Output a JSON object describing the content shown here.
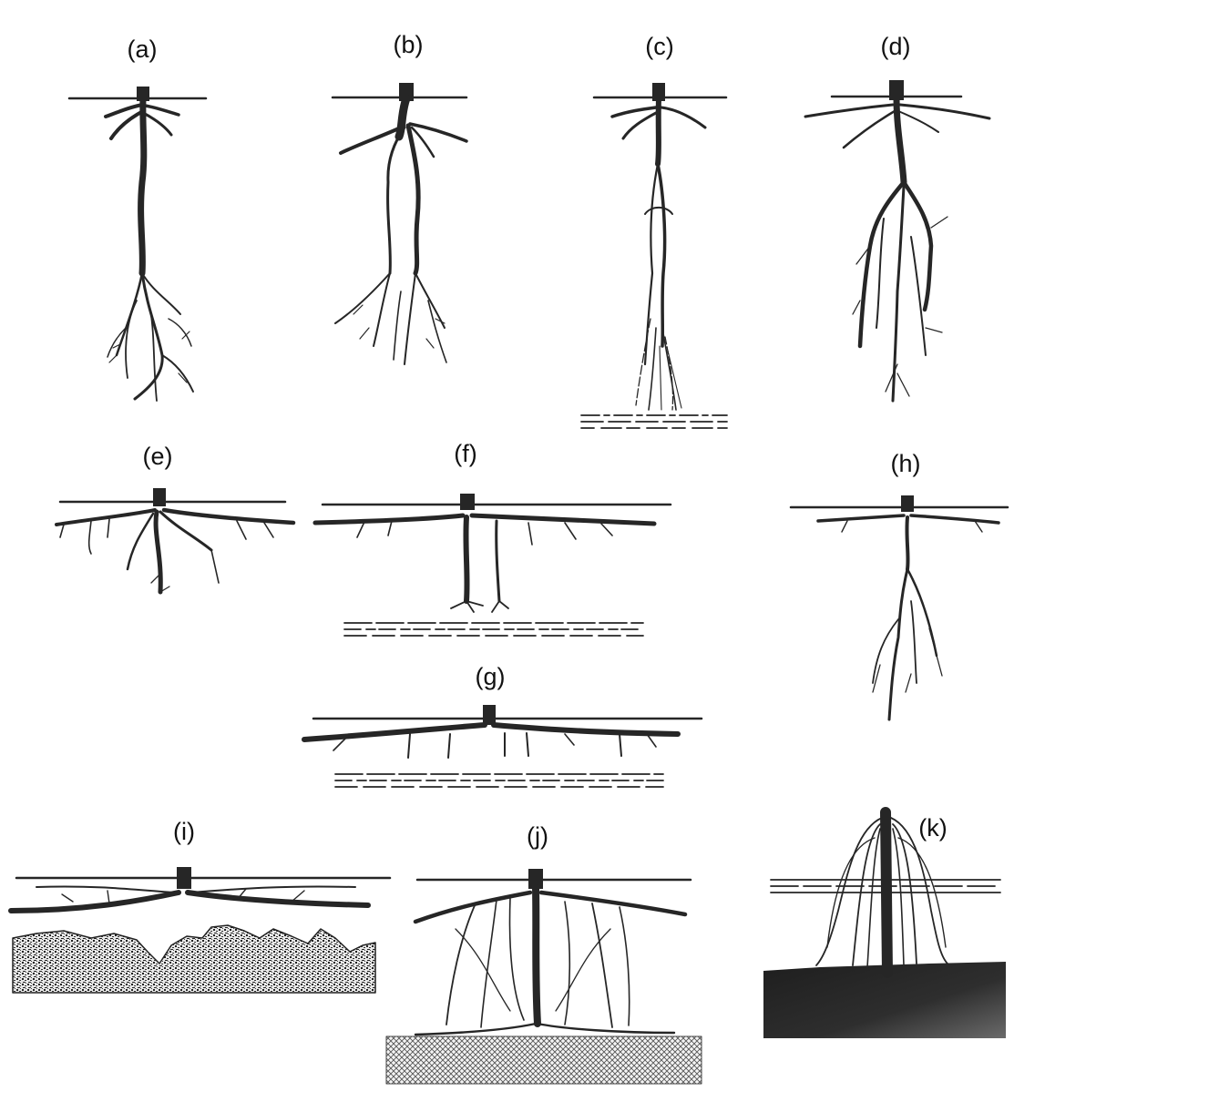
{
  "colors": {
    "ink": "#262626",
    "background": "#ffffff"
  },
  "panels": [
    {
      "id": "a",
      "label": "(a)"
    },
    {
      "id": "b",
      "label": "(b)"
    },
    {
      "id": "c",
      "label": "(c)"
    },
    {
      "id": "d",
      "label": "(d)"
    },
    {
      "id": "e",
      "label": "(e)"
    },
    {
      "id": "f",
      "label": "(f)"
    },
    {
      "id": "g",
      "label": "(g)"
    },
    {
      "id": "h",
      "label": "(h)"
    },
    {
      "id": "i",
      "label": "(i)"
    },
    {
      "id": "j",
      "label": "(j)"
    },
    {
      "id": "k",
      "label": "(k)"
    }
  ]
}
